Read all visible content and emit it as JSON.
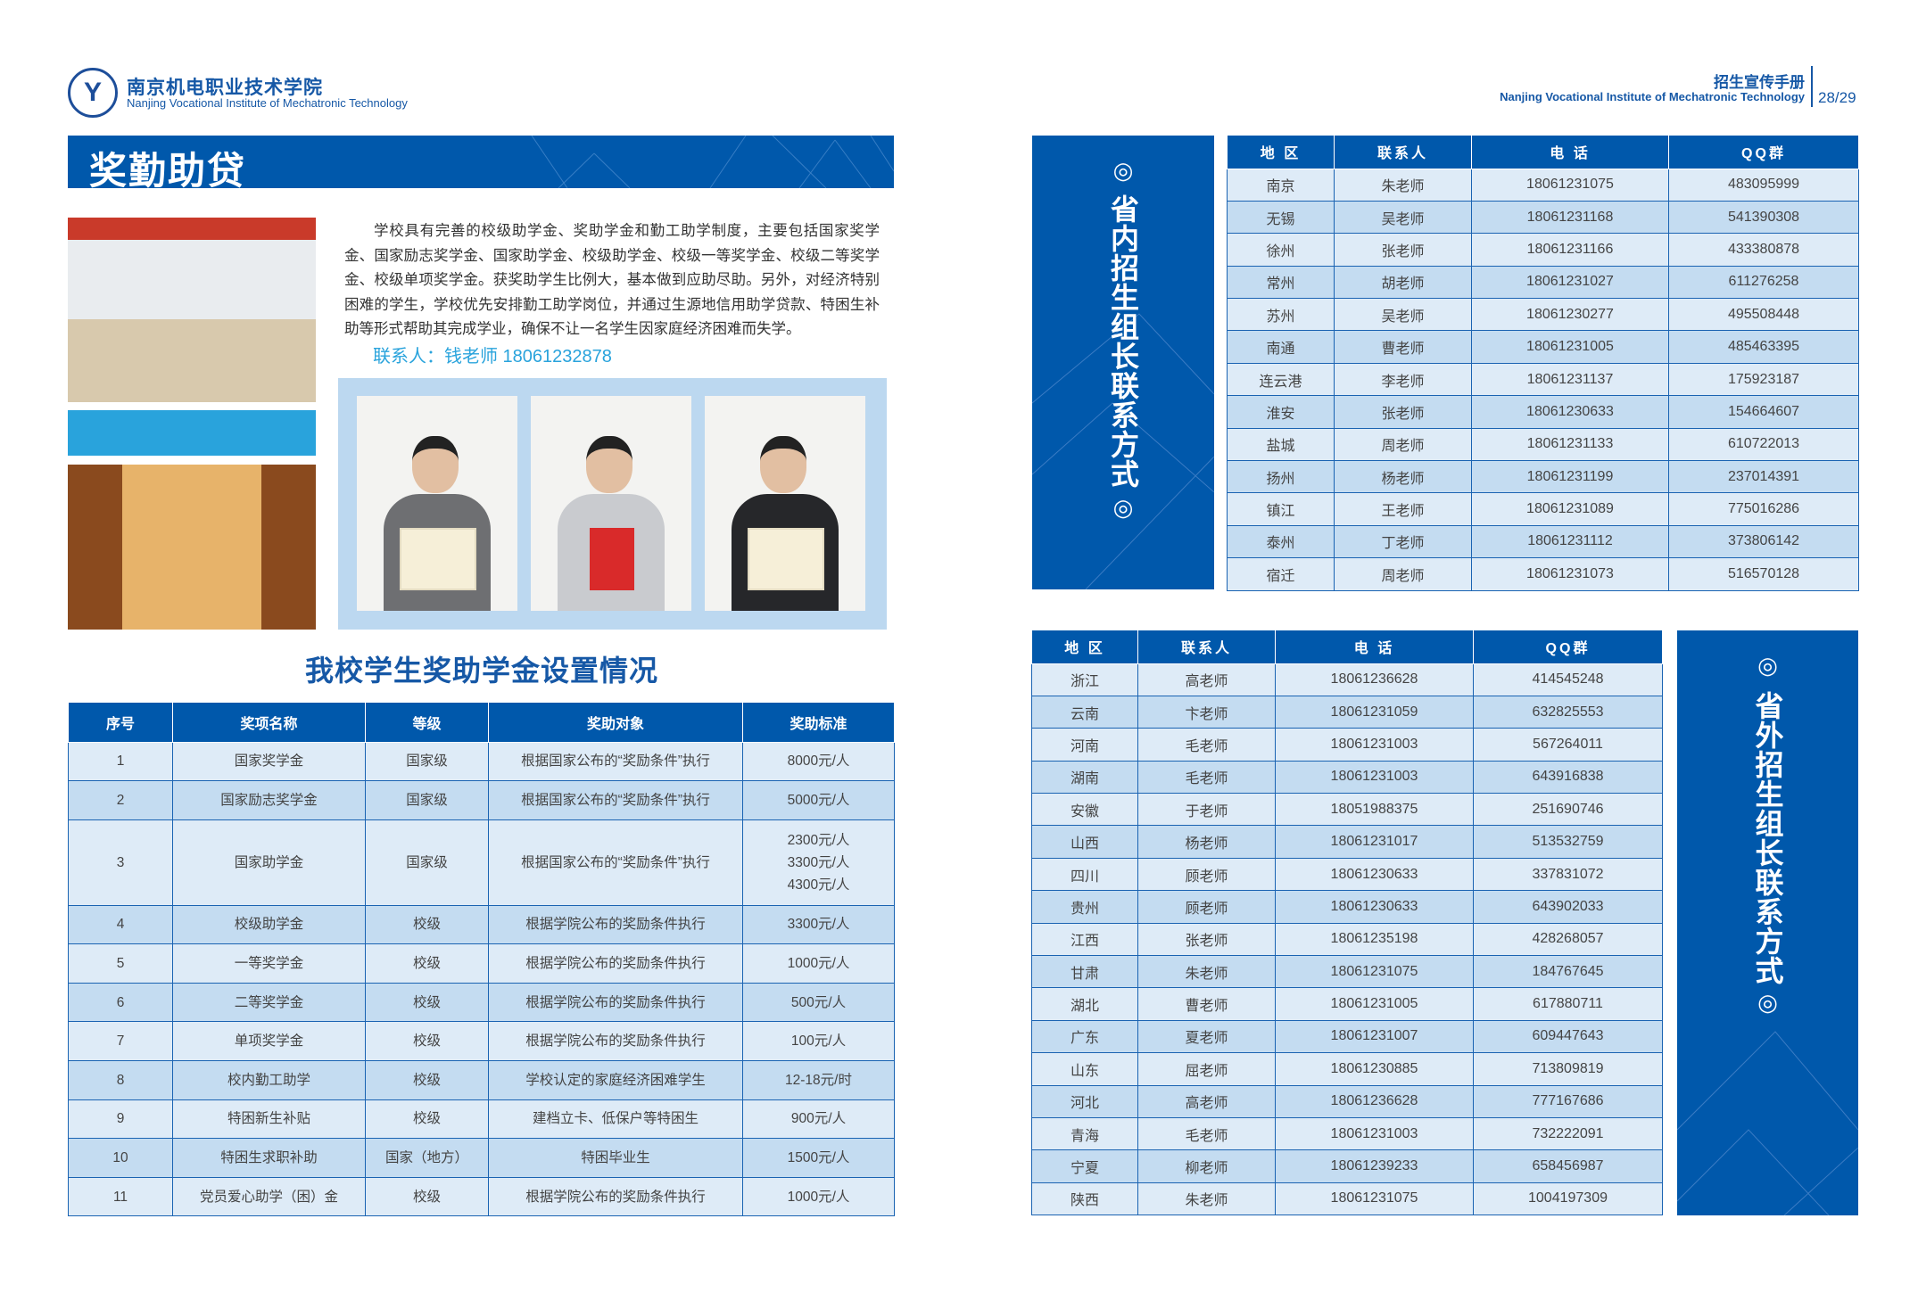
{
  "header_left": {
    "logo_mark": "Y",
    "school_cn": "南京机电职业技术学院",
    "school_en": "Nanjing Vocational Institute of Mechatronic Technology"
  },
  "header_right": {
    "brochure": "招生宣传手册",
    "school_en": "Nanjing Vocational Institute of Mechatronic Technology",
    "page": "28/29"
  },
  "section": {
    "title": "奖勤助贷",
    "intro": "学校具有完善的校级助学金、奖助学金和勤工助学制度，主要包括国家奖学金、国家励志奖学金、国家助学金、校级助学金、校级一等奖学金、校级二等奖学金、校级单项奖学金。获奖助学生比例大，基本做到应助尽助。另外，对经济特别困难的学生，学校优先安排勤工助学岗位，并通过生源地信用助学贷款、特困生补助等形式帮助其完成学业，确保不让一名学生因家庭经济困难而失学。",
    "contact": "联系人：钱老师  18061232878"
  },
  "award_table": {
    "title": "我校学生奖助学金设置情况",
    "headers": [
      "序号",
      "奖项名称",
      "等级",
      "奖助对象",
      "奖助标准"
    ],
    "rows": [
      [
        "1",
        "国家奖学金",
        "国家级",
        "根据国家公布的“奖励条件”执行",
        "8000元/人"
      ],
      [
        "2",
        "国家励志奖学金",
        "国家级",
        "根据国家公布的“奖励条件”执行",
        "5000元/人"
      ],
      [
        "3",
        "国家助学金",
        "国家级",
        "根据国家公布的“奖励条件”执行",
        "2300元/人\n3300元/人\n4300元/人"
      ],
      [
        "4",
        "校级助学金",
        "校级",
        "根据学院公布的奖励条件执行",
        "3300元/人"
      ],
      [
        "5",
        "一等奖学金",
        "校级",
        "根据学院公布的奖励条件执行",
        "1000元/人"
      ],
      [
        "6",
        "二等奖学金",
        "校级",
        "根据学院公布的奖励条件执行",
        "500元/人"
      ],
      [
        "7",
        "单项奖学金",
        "校级",
        "根据学院公布的奖励条件执行",
        "100元/人"
      ],
      [
        "8",
        "校内勤工助学",
        "校级",
        "学校认定的家庭经济困难学生",
        "12-18元/时"
      ],
      [
        "9",
        "特困新生补贴",
        "校级",
        "建档立卡、低保户等特困生",
        "900元/人"
      ],
      [
        "10",
        "特困生求职补助",
        "国家（地方）",
        "特困毕业生",
        "1500元/人"
      ],
      [
        "11",
        "党员爱心助学（困）金",
        "校级",
        "根据学院公布的奖励条件执行",
        "1000元/人"
      ]
    ]
  },
  "contacts_in": {
    "side_title": "省内招生组长联系方式",
    "ring": "◎",
    "headers": [
      "地 区",
      "联系人",
      "电 话",
      "QQ群"
    ],
    "rows": [
      [
        "南京",
        "朱老师",
        "18061231075",
        "483095999"
      ],
      [
        "无锡",
        "吴老师",
        "18061231168",
        "541390308"
      ],
      [
        "徐州",
        "张老师",
        "18061231166",
        "433380878"
      ],
      [
        "常州",
        "胡老师",
        "18061231027",
        "611276258"
      ],
      [
        "苏州",
        "吴老师",
        "18061230277",
        "495508448"
      ],
      [
        "南通",
        "曹老师",
        "18061231005",
        "485463395"
      ],
      [
        "连云港",
        "李老师",
        "18061231137",
        "175923187"
      ],
      [
        "淮安",
        "张老师",
        "18061230633",
        "154664607"
      ],
      [
        "盐城",
        "周老师",
        "18061231133",
        "610722013"
      ],
      [
        "扬州",
        "杨老师",
        "18061231199",
        "237014391"
      ],
      [
        "镇江",
        "王老师",
        "18061231089",
        "775016286"
      ],
      [
        "泰州",
        "丁老师",
        "18061231112",
        "373806142"
      ],
      [
        "宿迁",
        "周老师",
        "18061231073",
        "516570128"
      ]
    ]
  },
  "contacts_out": {
    "side_title": "省外招生组长联系方式",
    "ring": "◎",
    "headers": [
      "地 区",
      "联系人",
      "电 话",
      "QQ群"
    ],
    "rows": [
      [
        "浙江",
        "高老师",
        "18061236628",
        "414545248"
      ],
      [
        "云南",
        "卞老师",
        "18061231059",
        "632825553"
      ],
      [
        "河南",
        "毛老师",
        "18061231003",
        "567264011"
      ],
      [
        "湖南",
        "毛老师",
        "18061231003",
        "643916838"
      ],
      [
        "安徽",
        "于老师",
        "18051988375",
        "251690746"
      ],
      [
        "山西",
        "杨老师",
        "18061231017",
        "513532759"
      ],
      [
        "四川",
        "顾老师",
        "18061230633",
        "337831072"
      ],
      [
        "贵州",
        "顾老师",
        "18061230633",
        "643902033"
      ],
      [
        "江西",
        "张老师",
        "18061235198",
        "428268057"
      ],
      [
        "甘肃",
        "朱老师",
        "18061231075",
        "184767645"
      ],
      [
        "湖北",
        "曹老师",
        "18061231005",
        "617880711"
      ],
      [
        "广东",
        "夏老师",
        "18061231007",
        "609447643"
      ],
      [
        "山东",
        "屈老师",
        "18061230885",
        "713809819"
      ],
      [
        "河北",
        "高老师",
        "18061236628",
        "777167686"
      ],
      [
        "青海",
        "毛老师",
        "18061231003",
        "732222091"
      ],
      [
        "宁夏",
        "柳老师",
        "18061239233",
        "658456987"
      ],
      [
        "陕西",
        "朱老师",
        "18061231075",
        "1004197309"
      ]
    ]
  },
  "colors": {
    "primary": "#0058ab",
    "accent": "#29a3dc",
    "row_light": "#deebf7",
    "row_alt": "#c4dcf1",
    "panel": "#bcd8f0"
  }
}
